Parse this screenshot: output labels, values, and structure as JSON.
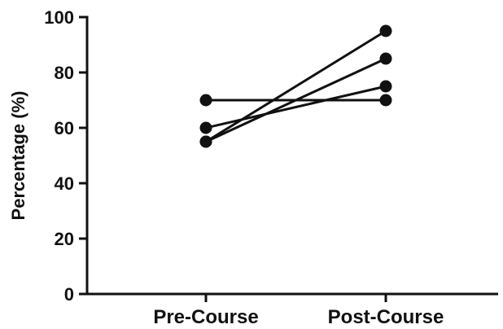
{
  "chart_data": {
    "type": "line",
    "title": "",
    "xlabel": "",
    "ylabel": "Percentage (%)",
    "categories": [
      "Pre-Course",
      "Post-Course"
    ],
    "ylim": [
      0,
      100
    ],
    "yticks": [
      0,
      20,
      40,
      60,
      80,
      100
    ],
    "ytick_labels": [
      "0",
      "20",
      "40",
      "60",
      "80",
      "100"
    ],
    "grid": false,
    "legend": "none",
    "series": [
      {
        "values": [
          70,
          70
        ]
      },
      {
        "values": [
          60,
          75
        ]
      },
      {
        "values": [
          55,
          85
        ]
      },
      {
        "values": [
          55,
          95
        ]
      }
    ],
    "line_color": "#111111",
    "marker_color": "#111111"
  }
}
